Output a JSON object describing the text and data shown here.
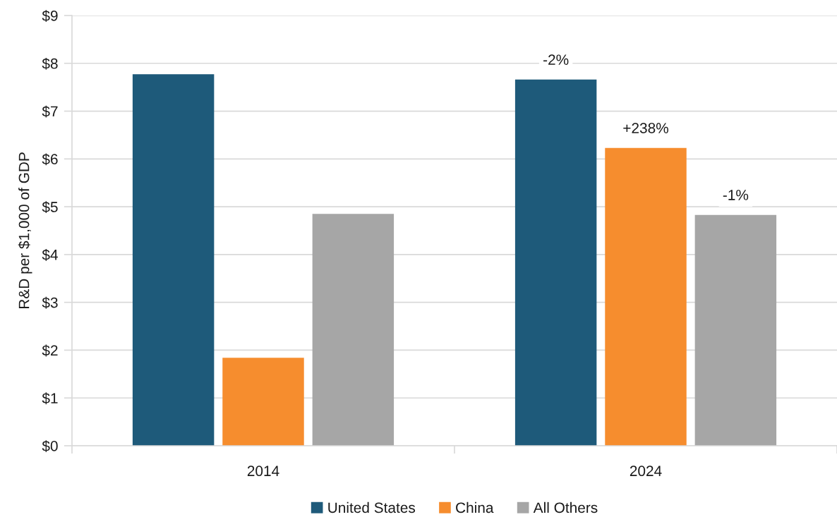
{
  "chart_data": {
    "type": "bar",
    "ylabel": "R&D per $1,000 of GDP",
    "categories": [
      "2014",
      "2024"
    ],
    "series": [
      {
        "name": "United States",
        "color": "#1e5a7a",
        "values": [
          7.77,
          7.66
        ]
      },
      {
        "name": "China",
        "color": "#f68d2e",
        "values": [
          1.84,
          6.23
        ]
      },
      {
        "name": "All Others",
        "color": "#a6a6a6",
        "values": [
          4.85,
          4.83
        ]
      }
    ],
    "annotations": [
      "-2%",
      "+238%",
      "-1%"
    ],
    "ylim": [
      0,
      9
    ],
    "yticks": [
      {
        "value": 0,
        "label": "$0"
      },
      {
        "value": 1,
        "label": "$1"
      },
      {
        "value": 2,
        "label": "$2"
      },
      {
        "value": 3,
        "label": "$3"
      },
      {
        "value": 4,
        "label": "$4"
      },
      {
        "value": 5,
        "label": "$5"
      },
      {
        "value": 6,
        "label": "$6"
      },
      {
        "value": 7,
        "label": "$7"
      },
      {
        "value": 8,
        "label": "$8"
      },
      {
        "value": 9,
        "label": "$9"
      }
    ],
    "grid": "y",
    "legend": "bottom"
  }
}
